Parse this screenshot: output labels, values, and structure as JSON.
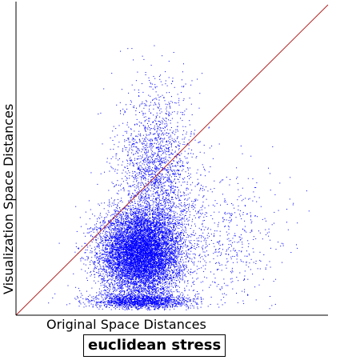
{
  "chart_data": {
    "type": "scatter",
    "title": "",
    "xlabel": "Original Space Distances",
    "ylabel": "Visualization Space Distances",
    "annotation": "euclidean stress",
    "xlim": [
      0,
      1
    ],
    "ylim": [
      0,
      1
    ],
    "reference_line": {
      "from": [
        0,
        0
      ],
      "to": [
        1,
        1
      ],
      "color": "#b22222"
    },
    "point_color": "#0000ff",
    "grid": false,
    "legend": "none",
    "clusters": [
      {
        "name": "dense core",
        "center": [
          0.4,
          0.2
        ],
        "spread": [
          0.065,
          0.07
        ],
        "count": 9000
      },
      {
        "name": "upper plume",
        "center": [
          0.45,
          0.45
        ],
        "spread": [
          0.06,
          0.14
        ],
        "count": 2200
      },
      {
        "name": "right tail",
        "center": [
          0.66,
          0.25
        ],
        "spread": [
          0.1,
          0.11
        ],
        "count": 600
      },
      {
        "name": "baseline band",
        "center": [
          0.4,
          0.045
        ],
        "spread": [
          0.08,
          0.012
        ],
        "count": 1500
      }
    ]
  }
}
